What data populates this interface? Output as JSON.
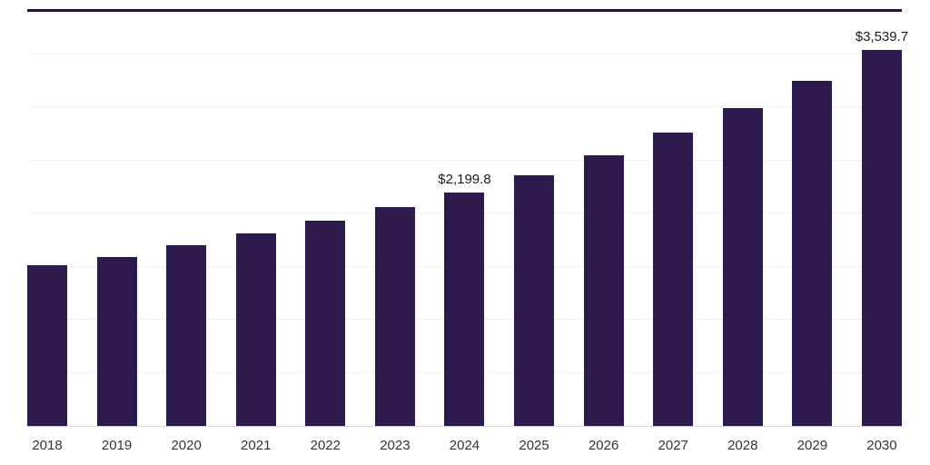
{
  "chart_data": {
    "type": "bar",
    "title": "",
    "xlabel": "",
    "ylabel": "",
    "categories": [
      "2018",
      "2019",
      "2020",
      "2021",
      "2022",
      "2023",
      "2024",
      "2025",
      "2026",
      "2027",
      "2028",
      "2029",
      "2030"
    ],
    "values": [
      1510,
      1590,
      1700,
      1810,
      1930,
      2060,
      2199.8,
      2360,
      2550,
      2760,
      2990,
      3250,
      3539.7
    ],
    "data_labels": {
      "2024": "$2,199.8",
      "2030": "$3,539.7"
    },
    "ylim": [
      0,
      3900
    ],
    "gridline_step": 500,
    "grid": true,
    "legend": "none",
    "bar_color": "#2d1b4e",
    "top_rule_color": "#231333",
    "axis_line_color": "#d9d9d9",
    "label_text_color": "#1a1a1a",
    "tick_text_color": "#333333"
  }
}
